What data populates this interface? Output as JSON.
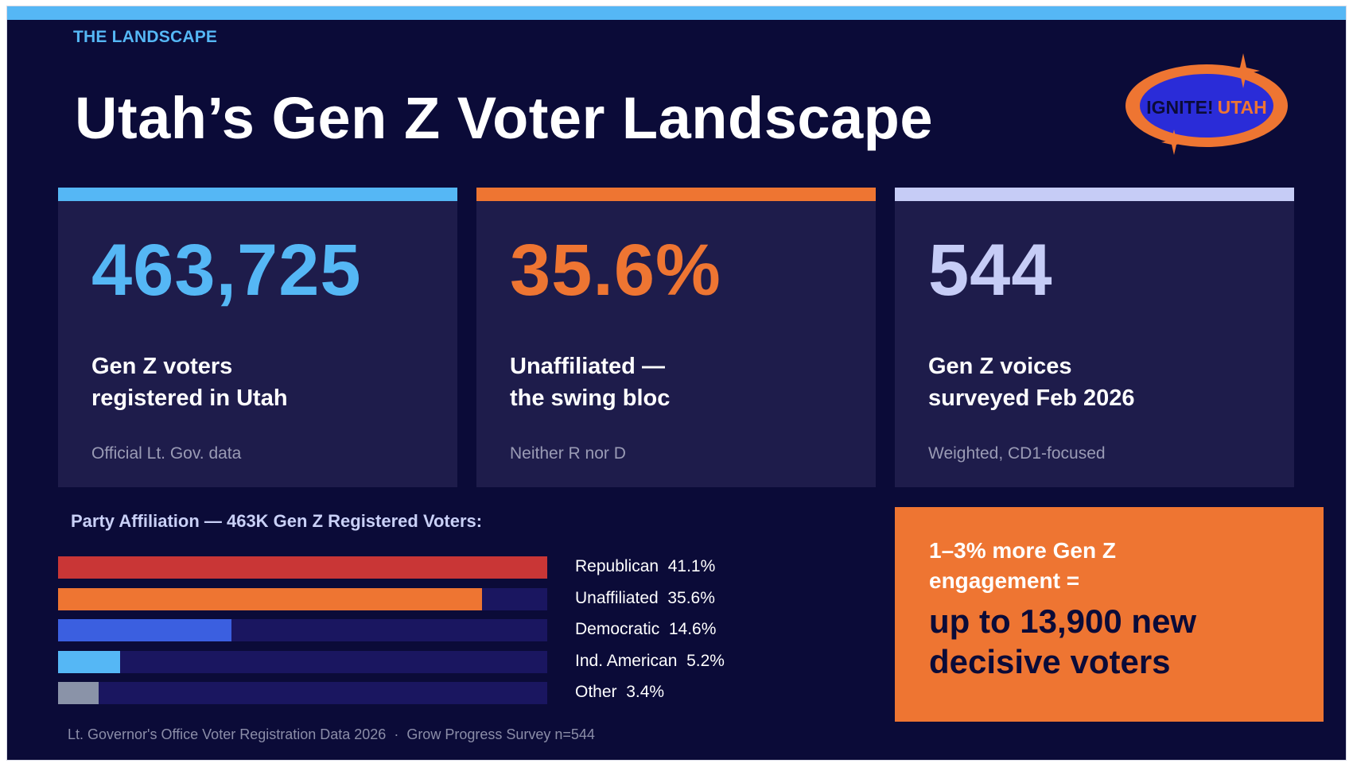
{
  "section_label": "THE LANDSCAPE",
  "title": "Utah’s Gen Z Voter Landscape",
  "logo": {
    "text_main": "IGNITE!",
    "text_accent": "UTAH"
  },
  "stat_cards": [
    {
      "value": "463,725",
      "desc_line1": "Gen Z voters",
      "desc_line2": "registered in Utah",
      "sub": "Official Lt. Gov. data",
      "accent": "#55b7f5"
    },
    {
      "value": "35.6%",
      "desc_line1": "Unaffiliated —",
      "desc_line2": "the swing bloc",
      "sub": "Neither R nor D",
      "accent": "#ee7532"
    },
    {
      "value": "544",
      "desc_line1": "Gen Z voices",
      "desc_line2": "surveyed Feb 2026",
      "sub": "Weighted, CD1-focused",
      "accent": "#c6ccf6"
    }
  ],
  "chart_data": {
    "type": "bar",
    "orientation": "horizontal",
    "title": "Party Affiliation — 463K Gen Z Registered Voters:",
    "categories": [
      "Republican",
      "Unaffiliated",
      "Democratic",
      "Ind. American",
      "Other"
    ],
    "values": [
      41.1,
      35.6,
      14.6,
      5.2,
      3.4
    ],
    "labels": [
      "41.1%",
      "35.6%",
      "14.6%",
      "5.2%",
      "3.4%"
    ],
    "colors": [
      "#c93636",
      "#ee7532",
      "#3b5fe0",
      "#55b7f5",
      "#8a93a8"
    ],
    "xlim": [
      0,
      41.1
    ],
    "unit": "%"
  },
  "callout": {
    "line1": "1–3% more Gen Z engagement =",
    "line2": "up to 13,900 new decisive voters"
  },
  "footer": "Lt. Governor's Office Voter Registration Data 2026  ·  Grow Progress Survey n=544"
}
